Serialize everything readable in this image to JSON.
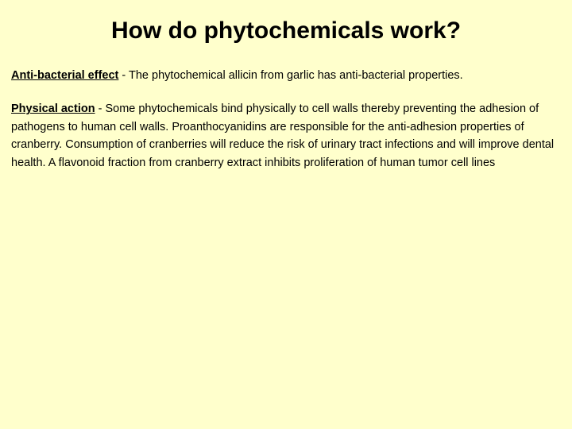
{
  "slide": {
    "title": "How do phytochemicals work?",
    "background_color": "#ffffcc",
    "text_color": "#000000",
    "title_fontsize": 30,
    "body_fontsize": 14.5,
    "sections": [
      {
        "lead": "Anti-bacterial effect",
        "body": " - The phytochemical allicin from garlic has anti-bacterial properties."
      },
      {
        "lead": "Physical action",
        "body": " - Some phytochemicals bind physically to cell walls thereby preventing the adhesion of pathogens to human cell walls. Proanthocyanidins are responsible for the anti-adhesion properties of cranberry. Consumption of cranberries will reduce the risk of urinary tract infections and will improve dental health. A flavonoid fraction from cranberry extract inhibits proliferation of human tumor cell lines"
      }
    ]
  }
}
